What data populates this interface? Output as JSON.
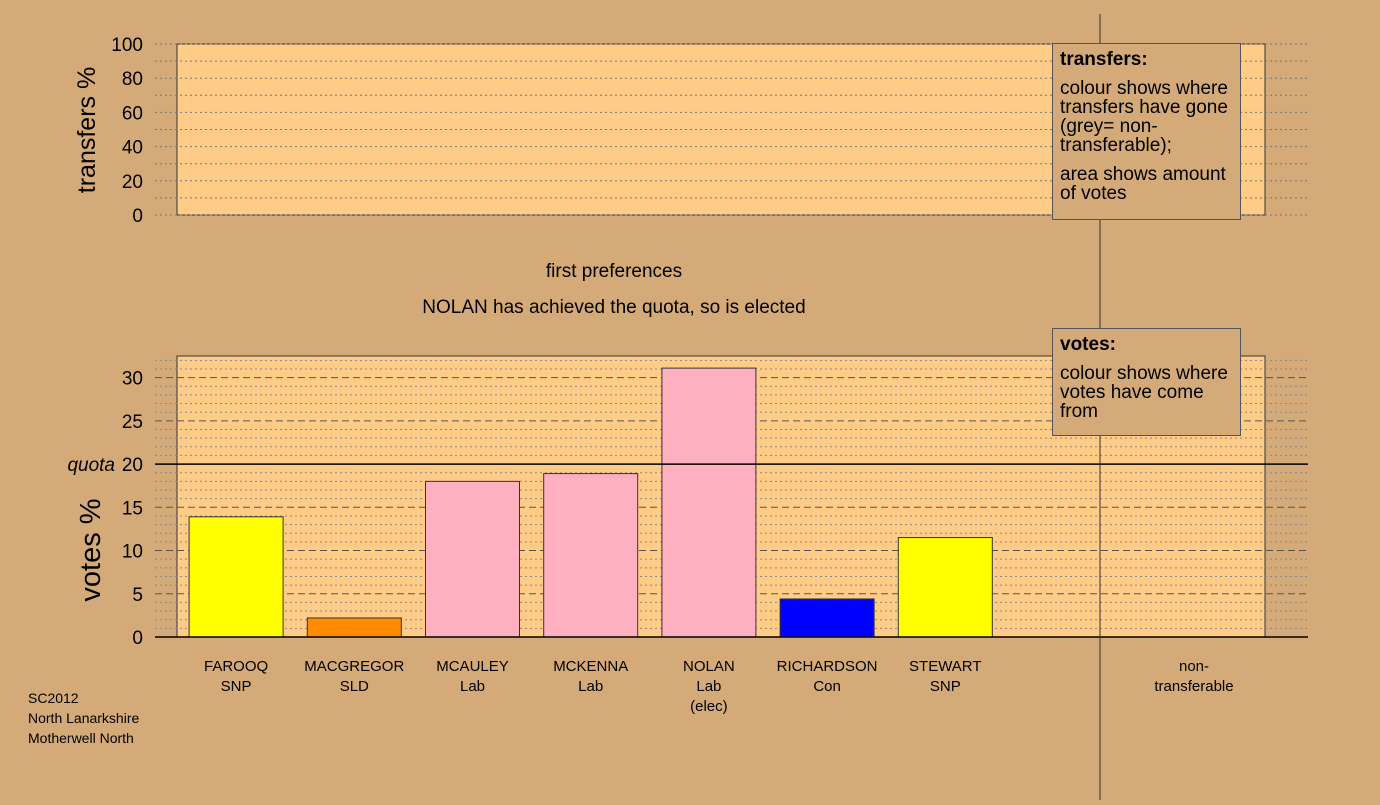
{
  "chart_data": {
    "type": "bar",
    "title": "first preferences",
    "subtitle": "NOLAN has achieved the quota, so is elected",
    "transfers_panel": {
      "ylabel": "transfers %",
      "ylim": [
        0,
        100
      ],
      "ticks": [
        "0",
        "20",
        "40",
        "60",
        "80",
        "100"
      ],
      "values": []
    },
    "votes_panel": {
      "ylabel": "votes %",
      "ylim": [
        0,
        32.5
      ],
      "ticks": [
        "0",
        "5",
        "10",
        "15",
        "20",
        "25",
        "30"
      ],
      "quota": 20,
      "quota_label": "quota"
    },
    "categories": [
      {
        "name": "FAROOQ",
        "party": "SNP",
        "note": "",
        "value": 13.9,
        "color": "#ffff00"
      },
      {
        "name": "MACGREGOR",
        "party": "SLD",
        "note": "",
        "value": 2.2,
        "color": "#ff8c00"
      },
      {
        "name": "MCAULEY",
        "party": "Lab",
        "note": "",
        "value": 18.0,
        "color": "#ffb0c0"
      },
      {
        "name": "MCKENNA",
        "party": "Lab",
        "note": "",
        "value": 18.9,
        "color": "#ffb0c0"
      },
      {
        "name": "NOLAN",
        "party": "Lab",
        "note": "(elec)",
        "value": 31.1,
        "color": "#ffb0c0"
      },
      {
        "name": "RICHARDSON",
        "party": "Con",
        "note": "",
        "value": 4.4,
        "color": "#0000ff"
      },
      {
        "name": "STEWART",
        "party": "SNP",
        "note": "",
        "value": 11.5,
        "color": "#ffff00"
      }
    ],
    "non_transferable": {
      "label_line1": "non-",
      "label_line2": "transferable",
      "value": 0
    },
    "colors": {
      "background": "#d4aa78",
      "panel": "#ffcc88"
    }
  },
  "legend_transfers": {
    "title": "transfers:",
    "para1": "colour shows where transfers have gone (grey= non-transferable);",
    "para2": "area shows amount of votes"
  },
  "legend_votes": {
    "title": "votes:",
    "para1": "colour shows where votes have come from"
  },
  "footer": {
    "line1": "SC2012",
    "line2": "North Lanarkshire",
    "line3": "Motherwell North"
  }
}
